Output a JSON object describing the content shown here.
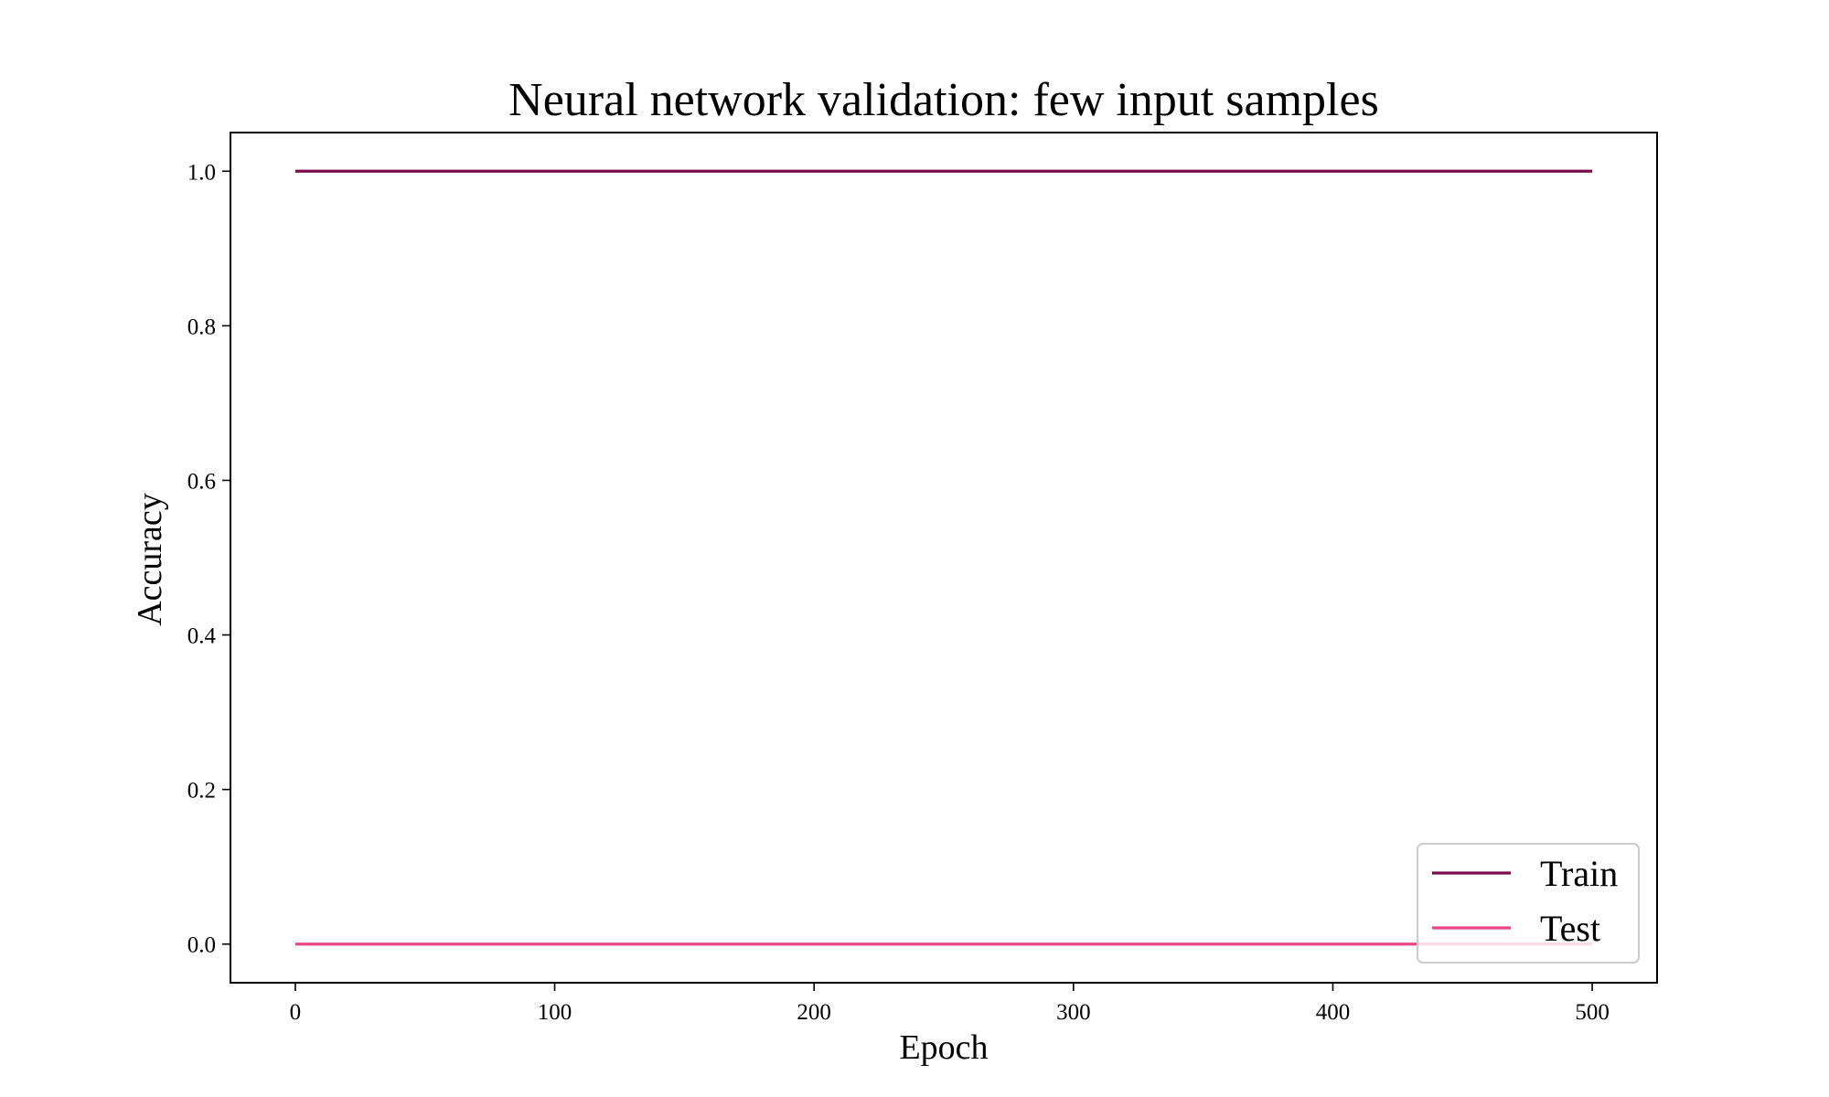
{
  "chart_data": {
    "type": "line",
    "title": "Neural network validation: few input samples",
    "xlabel": "Epoch",
    "ylabel": "Accuracy",
    "xlim": [
      -25,
      525
    ],
    "ylim": [
      -0.05,
      1.05
    ],
    "xticks": [
      0,
      100,
      200,
      300,
      400,
      500
    ],
    "xtick_labels": [
      "0",
      "100",
      "200",
      "300",
      "400",
      "500"
    ],
    "yticks": [
      0.0,
      0.2,
      0.4,
      0.6,
      0.8,
      1.0
    ],
    "ytick_labels": [
      "0.0",
      "0.2",
      "0.4",
      "0.6",
      "0.8",
      "1.0"
    ],
    "grid": false,
    "legend_position": "lower-right",
    "series": [
      {
        "name": "Train",
        "color": "#7a0f4b",
        "x": [
          0,
          500
        ],
        "y": [
          1.0,
          1.0
        ]
      },
      {
        "name": "Test",
        "color": "#e8478a",
        "x": [
          0,
          500
        ],
        "y": [
          0.0,
          0.0
        ]
      }
    ]
  }
}
